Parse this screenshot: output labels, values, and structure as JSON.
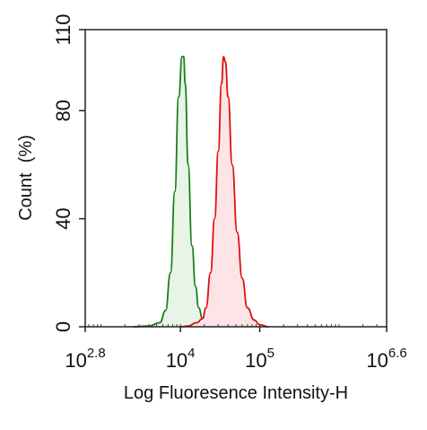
{
  "chart_data": {
    "type": "area",
    "xlabel": "Log Fluoresence Intensity-H",
    "ylabel": "Count  (%)",
    "x_scale": "log",
    "xlim": [
      631,
      3981072
    ],
    "ylim": [
      0,
      110
    ],
    "grid": false,
    "x_ticks": [
      {
        "value": 631,
        "base": "10",
        "exp": "2.8"
      },
      {
        "value": 10000,
        "base": "10",
        "exp": "4"
      },
      {
        "value": 100000,
        "base": "10",
        "exp": "5"
      },
      {
        "value": 3981072,
        "base": "10",
        "exp": "6.6"
      }
    ],
    "y_ticks": [
      {
        "value": 0,
        "label": "0"
      },
      {
        "value": 40,
        "label": "40"
      },
      {
        "value": 80,
        "label": "80"
      },
      {
        "value": 110,
        "label": "110"
      }
    ],
    "series": [
      {
        "color": "#1a7f1a",
        "fill": "#e8f4e8",
        "points": [
          [
            2500,
            0
          ],
          [
            4000,
            0.3
          ],
          [
            5500,
            1.5
          ],
          [
            6500,
            6
          ],
          [
            7500,
            20
          ],
          [
            8500,
            50
          ],
          [
            9500,
            85
          ],
          [
            10500,
            100
          ],
          [
            11000,
            100
          ],
          [
            11500,
            90
          ],
          [
            12500,
            60
          ],
          [
            14000,
            30
          ],
          [
            15500,
            15
          ],
          [
            17000,
            7
          ],
          [
            19000,
            3
          ],
          [
            22000,
            1
          ],
          [
            28000,
            0
          ]
        ]
      },
      {
        "color": "#dd1111",
        "fill": "#fde4e6",
        "points": [
          [
            10000,
            0
          ],
          [
            12500,
            0.3
          ],
          [
            16000,
            1.5
          ],
          [
            19000,
            3
          ],
          [
            21000,
            7
          ],
          [
            24000,
            20
          ],
          [
            27000,
            40
          ],
          [
            30000,
            65
          ],
          [
            33000,
            90
          ],
          [
            35000,
            100
          ],
          [
            37000,
            98
          ],
          [
            40000,
            85
          ],
          [
            45000,
            60
          ],
          [
            52000,
            35
          ],
          [
            60000,
            18
          ],
          [
            70000,
            7
          ],
          [
            85000,
            2.5
          ],
          [
            100000,
            0.8
          ],
          [
            130000,
            0
          ]
        ]
      }
    ]
  }
}
